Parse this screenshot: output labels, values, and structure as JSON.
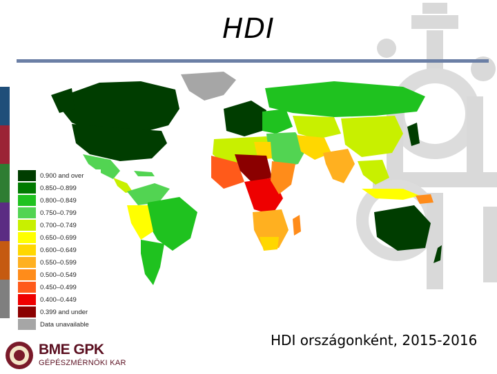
{
  "title": "HDI",
  "caption": "HDI országonként, 2015-2016",
  "legend": {
    "items": [
      {
        "label": "0.900 and over",
        "color": "#003d00"
      },
      {
        "label": "0.850–0.899",
        "color": "#007a00"
      },
      {
        "label": "0.800–0.849",
        "color": "#1fc21f"
      },
      {
        "label": "0.750–0.799",
        "color": "#52d452"
      },
      {
        "label": "0.700–0.749",
        "color": "#c8f000"
      },
      {
        "label": "0.650–0.699",
        "color": "#ffff00"
      },
      {
        "label": "0.600–0.649",
        "color": "#ffd700"
      },
      {
        "label": "0.550–0.599",
        "color": "#ffb020"
      },
      {
        "label": "0.500–0.549",
        "color": "#ff8c1a"
      },
      {
        "label": "0.450–0.499",
        "color": "#ff5a1a"
      },
      {
        "label": "0.400–0.449",
        "color": "#ee0000"
      },
      {
        "label": "0.399 and under",
        "color": "#8b0000"
      },
      {
        "label": "Data unavailable",
        "color": "#a6a6a6"
      }
    ]
  },
  "logo": {
    "main": "BME GPK",
    "sub": "GÉPÉSZMÉRNÖKI KAR"
  },
  "sidebar_colors": [
    "#1f4e79",
    "#9b2335",
    "#2e7d32",
    "#5b2c83",
    "#c55a11",
    "#7f7f7f"
  ]
}
